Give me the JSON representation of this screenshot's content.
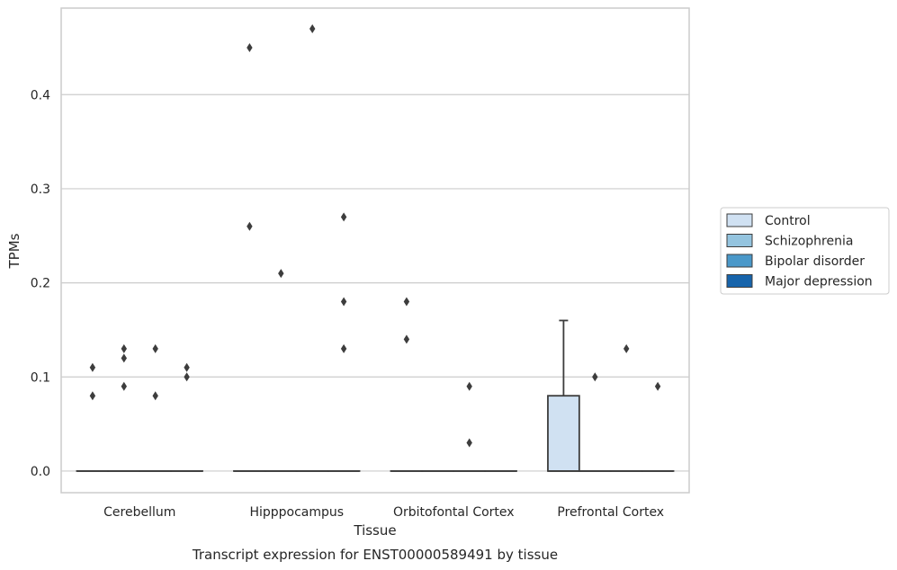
{
  "caption": "Transcript expression for ENST00000589491 by tissue",
  "chart_data": {
    "type": "box",
    "xlabel": "Tissue",
    "ylabel": "TPMs",
    "categories": [
      "Cerebellum",
      "Hipppocampus",
      "Orbitofontal Cortex",
      "Prefrontal Cortex"
    ],
    "ylim": [
      -0.023,
      0.492
    ],
    "yticks": [
      "0.0",
      "0.1",
      "0.2",
      "0.3",
      "0.4"
    ],
    "grid": "horizontal",
    "legend_position": "right",
    "series": [
      {
        "name": "Control",
        "color": "#d0e1f2",
        "boxes": [
          {
            "category": "Cerebellum",
            "min": 0,
            "q1": 0,
            "median": 0,
            "q3": 0,
            "max": 0,
            "outliers": [
              0.08,
              0.11
            ]
          },
          {
            "category": "Hipppocampus",
            "min": 0,
            "q1": 0,
            "median": 0,
            "q3": 0,
            "max": 0,
            "outliers": [
              0.26,
              0.45
            ]
          },
          {
            "category": "Orbitofontal Cortex",
            "min": 0,
            "q1": 0,
            "median": 0,
            "q3": 0,
            "max": 0,
            "outliers": [
              0.14,
              0.18
            ]
          },
          {
            "category": "Prefrontal Cortex",
            "min": 0,
            "q1": 0,
            "median": 0,
            "q3": 0.08,
            "max": 0.16,
            "outliers": []
          }
        ]
      },
      {
        "name": "Schizophrenia",
        "color": "#94c4df",
        "boxes": [
          {
            "category": "Cerebellum",
            "min": 0,
            "q1": 0,
            "median": 0,
            "q3": 0,
            "max": 0,
            "outliers": [
              0.09,
              0.12,
              0.13
            ]
          },
          {
            "category": "Hipppocampus",
            "min": 0,
            "q1": 0,
            "median": 0,
            "q3": 0,
            "max": 0,
            "outliers": [
              0.21
            ]
          },
          {
            "category": "Orbitofontal Cortex",
            "min": 0,
            "q1": 0,
            "median": 0,
            "q3": 0,
            "max": 0,
            "outliers": []
          },
          {
            "category": "Prefrontal Cortex",
            "min": 0,
            "q1": 0,
            "median": 0,
            "q3": 0,
            "max": 0,
            "outliers": [
              0.1
            ]
          }
        ]
      },
      {
        "name": "Bipolar disorder",
        "color": "#4a98c9",
        "boxes": [
          {
            "category": "Cerebellum",
            "min": 0,
            "q1": 0,
            "median": 0,
            "q3": 0,
            "max": 0,
            "outliers": [
              0.08,
              0.13
            ]
          },
          {
            "category": "Hipppocampus",
            "min": 0,
            "q1": 0,
            "median": 0,
            "q3": 0,
            "max": 0,
            "outliers": [
              0.47
            ]
          },
          {
            "category": "Orbitofontal Cortex",
            "min": 0,
            "q1": 0,
            "median": 0,
            "q3": 0,
            "max": 0,
            "outliers": [
              0.03,
              0.09
            ]
          },
          {
            "category": "Prefrontal Cortex",
            "min": 0,
            "q1": 0,
            "median": 0,
            "q3": 0,
            "max": 0,
            "outliers": [
              0.13
            ]
          }
        ]
      },
      {
        "name": "Major depression",
        "color": "#1764ab",
        "boxes": [
          {
            "category": "Cerebellum",
            "min": 0,
            "q1": 0,
            "median": 0,
            "q3": 0,
            "max": 0,
            "outliers": [
              0.1,
              0.11
            ]
          },
          {
            "category": "Hipppocampus",
            "min": 0,
            "q1": 0,
            "median": 0,
            "q3": 0,
            "max": 0,
            "outliers": [
              0.13,
              0.18,
              0.27
            ]
          },
          {
            "category": "Orbitofontal Cortex",
            "min": 0,
            "q1": 0,
            "median": 0,
            "q3": 0,
            "max": 0,
            "outliers": []
          },
          {
            "category": "Prefrontal Cortex",
            "min": 0,
            "q1": 0,
            "median": 0,
            "q3": 0,
            "max": 0,
            "outliers": [
              0.09
            ]
          }
        ]
      }
    ]
  }
}
